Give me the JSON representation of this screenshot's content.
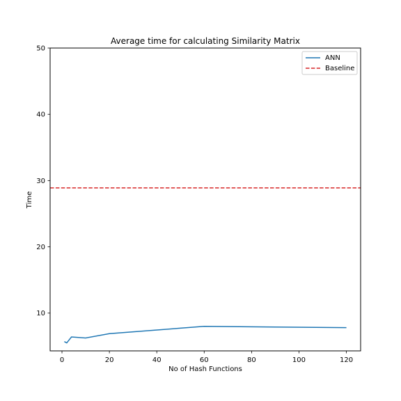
{
  "chart_data": {
    "type": "line",
    "title": "Average time for calculating Similarity Matrix",
    "xlabel": "No of Hash Functions",
    "ylabel": "Time",
    "xlim": [
      -5,
      126
    ],
    "ylim": [
      4.3,
      50
    ],
    "xticks": [
      0,
      20,
      40,
      60,
      80,
      100,
      120
    ],
    "yticks": [
      10,
      20,
      30,
      40,
      50
    ],
    "legend_position": "top-right",
    "series": [
      {
        "name": "ANN",
        "style": "solid",
        "color": "#1f77b4",
        "x": [
          1,
          2,
          4,
          10,
          20,
          60,
          120
        ],
        "y": [
          5.7,
          5.5,
          6.4,
          6.25,
          6.9,
          8.0,
          7.8
        ]
      },
      {
        "name": "Baseline",
        "style": "dashed",
        "color": "#d62728",
        "x": [
          -5,
          126
        ],
        "y": [
          28.9,
          28.9
        ]
      }
    ]
  }
}
